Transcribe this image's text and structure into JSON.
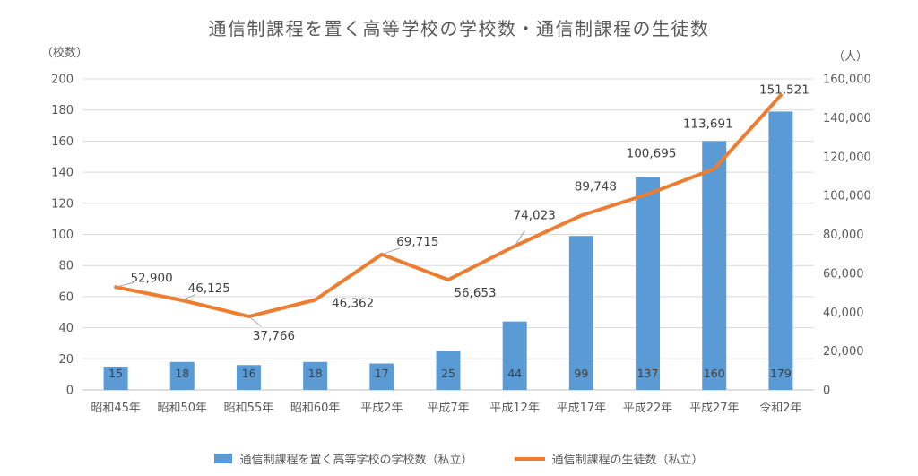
{
  "chart_data": {
    "type": "combo",
    "title": "通信制課程を置く高等学校の学校数・通信制課程の生徒数",
    "categories": [
      "昭和45年",
      "昭和50年",
      "昭和55年",
      "昭和60年",
      "平成2年",
      "平成7年",
      "平成12年",
      "平成17年",
      "平成22年",
      "平成27年",
      "令和2年"
    ],
    "series": [
      {
        "name": "通信制課程を置く高等学校の学校数（私立）",
        "type": "bar",
        "axis": "left",
        "color": "#5B9BD5",
        "values": [
          15,
          18,
          16,
          18,
          17,
          25,
          44,
          99,
          137,
          160,
          179
        ],
        "labels": [
          "15",
          "18",
          "16",
          "18",
          "17",
          "25",
          "44",
          "99",
          "137",
          "160",
          "179"
        ]
      },
      {
        "name": "通信制課程の生徒数（私立）",
        "type": "line",
        "axis": "right",
        "color": "#ED7D31",
        "values": [
          52900,
          46125,
          37766,
          46362,
          69715,
          56653,
          74023,
          89748,
          100695,
          113691,
          151521
        ],
        "labels": [
          "52,900",
          "46,125",
          "37,766",
          "46,362",
          "69,715",
          "56,653",
          "74,023",
          "89,748",
          "100,695",
          "113,691",
          "151,521"
        ]
      }
    ],
    "left_axis": {
      "label": "（校数）",
      "min": 0,
      "max": 200,
      "step": 20,
      "ticks": [
        "0",
        "20",
        "40",
        "60",
        "80",
        "100",
        "120",
        "140",
        "160",
        "180",
        "200"
      ]
    },
    "right_axis": {
      "label": "（人）",
      "min": 0,
      "max": 160000,
      "step": 20000,
      "ticks": [
        "0",
        "20,000",
        "40,000",
        "60,000",
        "80,000",
        "100,000",
        "120,000",
        "140,000",
        "160,000"
      ]
    },
    "grid": true,
    "legend_position": "bottom"
  }
}
